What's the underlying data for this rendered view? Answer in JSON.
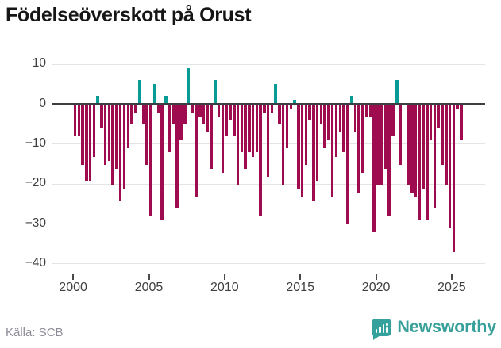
{
  "title": "Födelseöverskott på Orust",
  "source": "Källa: SCB",
  "brand": {
    "name": "Newsworthy"
  },
  "colors": {
    "positive_bar": "#089a94",
    "negative_bar": "#9e0b4f",
    "zero_line": "#3c4043",
    "gridline": "#e4e4e4",
    "axis_text": "#3f3f3f",
    "title_text": "#161616",
    "source_text": "#8d8d97",
    "brand_teal": "#38a09a"
  },
  "chart_data": {
    "type": "bar",
    "title": "Födelseöverskott på Orust",
    "xlabel": "",
    "ylabel": "",
    "frequency": "quarterly",
    "start_year": 2000,
    "start_quarter": 1,
    "ylim": [
      -40,
      12
    ],
    "grid": true,
    "y_ticks": [
      10,
      0,
      -10,
      -20,
      -30,
      -40
    ],
    "x_tick_years": [
      2000,
      2005,
      2010,
      2015,
      2020,
      2025
    ],
    "x_tick_labels": [
      "2000",
      "2005",
      "2010",
      "2015",
      "2020",
      "2025"
    ],
    "values": [
      -8,
      -8,
      -15,
      -19,
      -19,
      -13,
      2,
      -6,
      -15,
      -14,
      -20,
      -16,
      -24,
      -21,
      -11,
      -5,
      -2,
      6,
      -5,
      -15,
      -28,
      5,
      -2,
      -29,
      2,
      -12,
      -5,
      -26,
      -9,
      -5,
      9,
      -2,
      -23,
      -3,
      -5,
      -7,
      -16,
      6,
      -3,
      -17,
      -8,
      -4,
      -8,
      -20,
      -12,
      -16,
      -12,
      -13,
      -12,
      -28,
      -2,
      -18,
      -2,
      5,
      -5,
      -20,
      -11,
      -1,
      1,
      -21,
      -23,
      -15,
      -4,
      -24,
      -19,
      -5,
      -11,
      -9,
      -23,
      -13,
      -7,
      -12,
      -30,
      2,
      -7,
      -22,
      -17,
      -3,
      -3,
      -32,
      -20,
      -20,
      -16,
      -28,
      -8,
      6,
      -15,
      0,
      -20,
      -22,
      -23,
      -29,
      -21,
      -29,
      -9,
      -26,
      -6,
      -15,
      -20,
      -31,
      -37,
      -1,
      -9
    ]
  }
}
